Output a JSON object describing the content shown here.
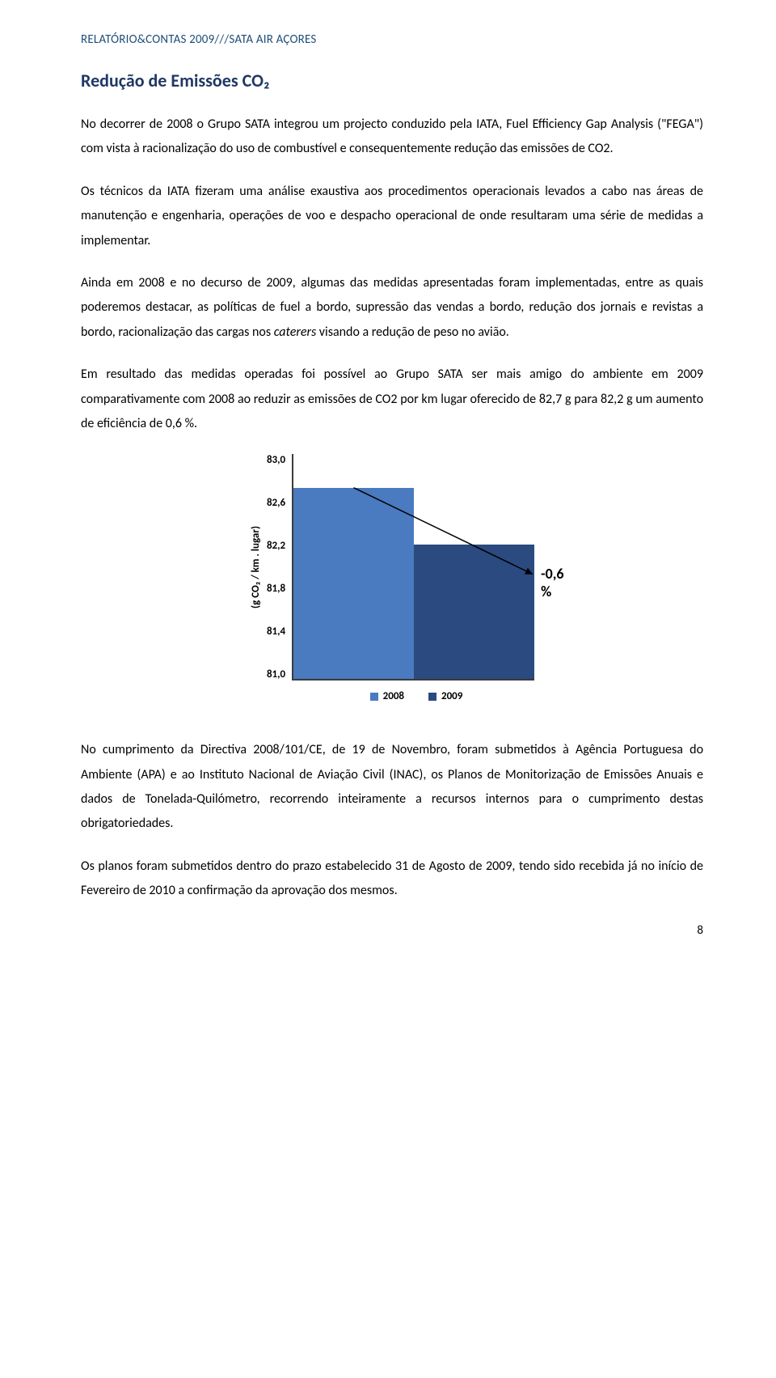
{
  "header": {
    "prefix": "RELATÓRIO&CONTAS 2009",
    "slashes": "///",
    "suffix": "SATA AIR AÇORES"
  },
  "title": "Redução de Emissões CO₂",
  "paragraphs": {
    "p1": "No decorrer de 2008 o Grupo SATA integrou um projecto conduzido pela IATA, Fuel Efficiency Gap Analysis (\"FEGA\") com vista à racionalização do uso de combustível e consequentemente redução das emissões de CO2.",
    "p2": "Os técnicos da IATA fizeram uma análise exaustiva aos procedimentos operacionais levados a cabo nas áreas de manutenção e engenharia, operações de voo e despacho operacional de onde resultaram uma série de medidas a implementar.",
    "p3_a": "Ainda em 2008 e no decurso de 2009, algumas das medidas apresentadas foram implementadas, entre as quais poderemos destacar, as políticas de fuel a bordo, supressão das vendas a bordo, redução dos jornais e revistas a bordo, racionalização das cargas nos ",
    "p3_italic": "caterers",
    "p3_b": " visando a redução de peso no avião.",
    "p4": "Em resultado das medidas operadas foi possível ao Grupo SATA ser mais amigo do ambiente em 2009 comparativamente com 2008 ao reduzir as emissões de CO2 por km lugar oferecido de 82,7 g para 82,2 g um aumento de eficiência de 0,6 %.",
    "p5": "No cumprimento da Directiva 2008/101/CE, de 19 de Novembro, foram submetidos à Agência Portuguesa do Ambiente (APA) e ao Instituto Nacional de Aviação Civil (INAC), os Planos de Monitorização de Emissões Anuais e dados de Tonelada-Quilómetro, recorrendo inteiramente a recursos internos para o cumprimento destas obrigatoriedades.",
    "p6": "Os planos foram submetidos dentro do prazo estabelecido 31 de Agosto de 2009, tendo sido recebida já no início de Fevereiro de 2010 a confirmação da aprovação dos mesmos."
  },
  "chart": {
    "type": "bar",
    "ylabel": "(g CO₂ / km . lugar)",
    "ylim_min": 81.0,
    "ylim_max": 83.0,
    "ytick_labels": [
      "83,0",
      "82,6",
      "82,2",
      "81,8",
      "81,4",
      "81,0"
    ],
    "categories": [
      "2008",
      "2009"
    ],
    "values": [
      82.7,
      82.2
    ],
    "bar_colors": [
      "#4a7ac0",
      "#2a4a80"
    ],
    "annotation": "-0,6 %",
    "trend_color": "#000000",
    "bg_color": "#ffffff",
    "axis_color": "#3b3b3b",
    "tick_fontsize": 13,
    "label_fontsize": 13,
    "annotation_fontsize": 18
  },
  "page_number": "8"
}
